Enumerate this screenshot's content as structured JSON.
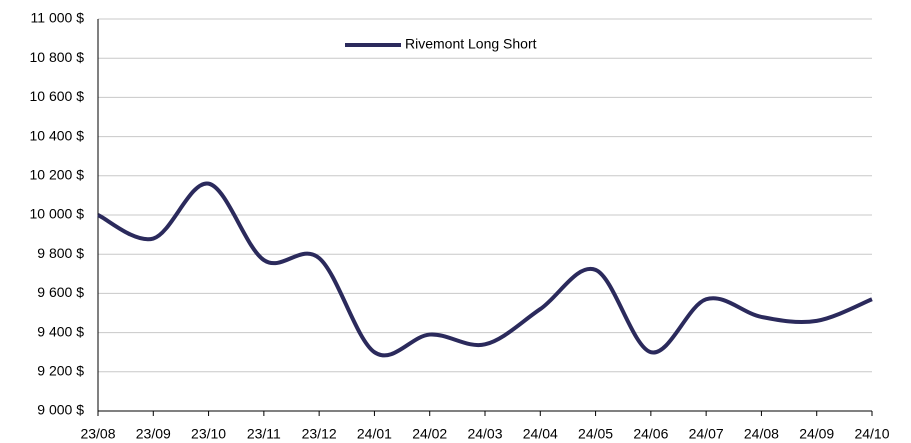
{
  "chart_data": {
    "type": "line",
    "categories": [
      "23/08",
      "23/09",
      "23/10",
      "23/11",
      "23/12",
      "24/01",
      "24/02",
      "24/03",
      "24/04",
      "24/05",
      "24/06",
      "24/07",
      "24/08",
      "24/09",
      "24/10"
    ],
    "series": [
      {
        "name": "Rivemont Long Short",
        "color": "#2b2a5c",
        "values": [
          10000,
          9880,
          10160,
          9770,
          9780,
          9300,
          9390,
          9340,
          9520,
          9720,
          9300,
          9570,
          9480,
          9460,
          9570
        ]
      }
    ],
    "ylim": [
      9000,
      11000
    ],
    "yticks": [
      {
        "value": 9000,
        "label": "9 000 $"
      },
      {
        "value": 9200,
        "label": "9 200 $"
      },
      {
        "value": 9400,
        "label": "9 400 $"
      },
      {
        "value": 9600,
        "label": "9 600 $"
      },
      {
        "value": 9800,
        "label": "9 800 $"
      },
      {
        "value": 10000,
        "label": "10 000 $"
      },
      {
        "value": 10200,
        "label": "10 200 $"
      },
      {
        "value": 10400,
        "label": "10 400 $"
      },
      {
        "value": 10600,
        "label": "10 600 $"
      },
      {
        "value": 10800,
        "label": "10 800 $"
      },
      {
        "value": 11000,
        "label": "11 000 $"
      }
    ],
    "grid": true,
    "legend": "top"
  }
}
